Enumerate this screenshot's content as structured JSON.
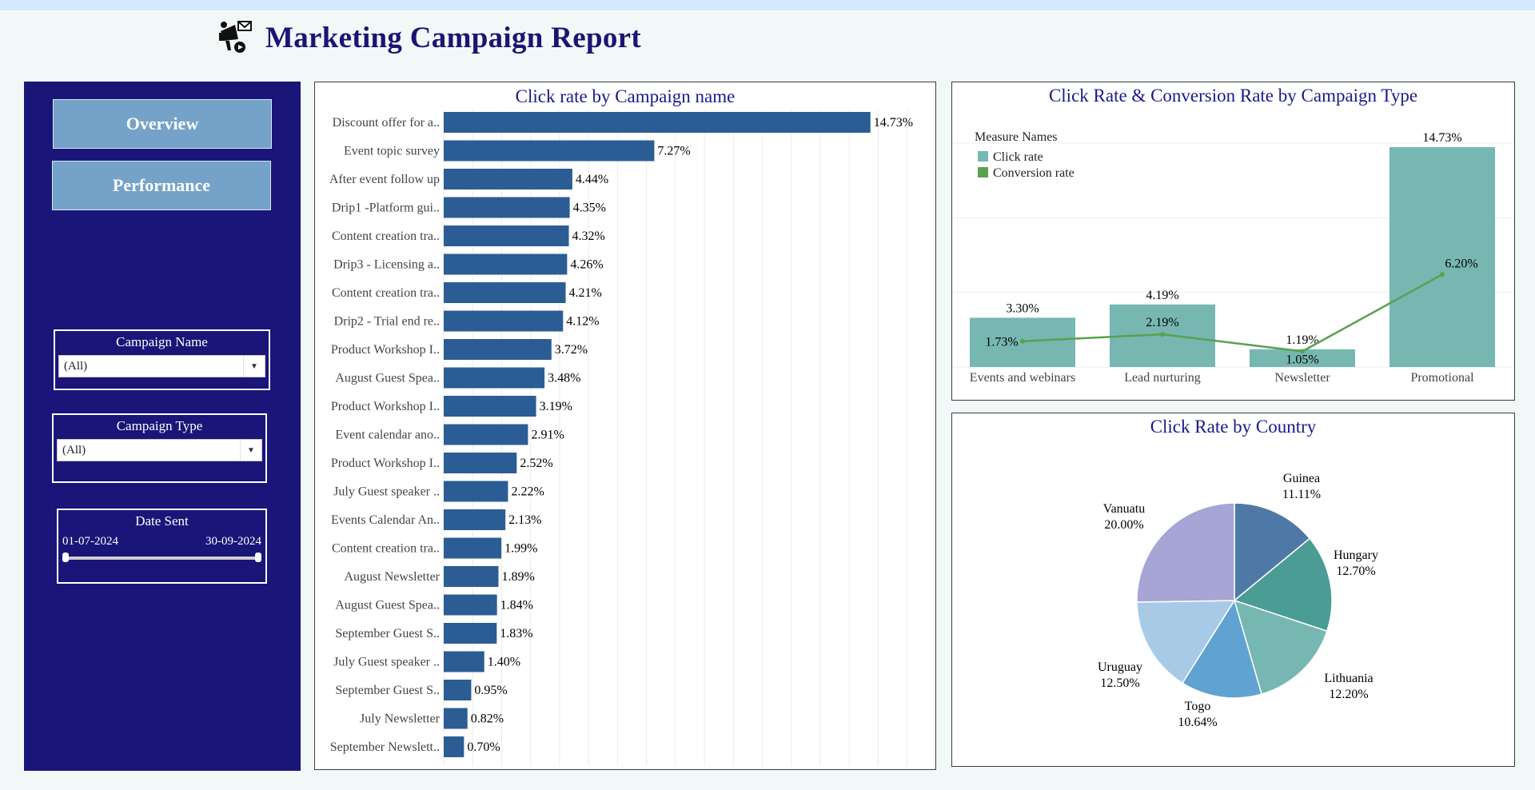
{
  "header": {
    "title": "Marketing Campaign Report"
  },
  "sidebar": {
    "nav": [
      {
        "label": "Overview"
      },
      {
        "label": "Performance"
      }
    ],
    "filters": {
      "campaign_name": {
        "label": "Campaign Name",
        "value": "(All)"
      },
      "campaign_type": {
        "label": "Campaign Type",
        "value": "(All)"
      },
      "date_sent": {
        "label": "Date Sent",
        "start": "01-07-2024",
        "end": "30-09-2024"
      }
    }
  },
  "colors": {
    "sidebar": "#1a1578",
    "nav_button": "#75a2c8",
    "bar": "#2b5d94",
    "click_rate": "#76b7b2",
    "conversion_rate": "#59a14f",
    "title": "#1a1a8a"
  },
  "chart_data": [
    {
      "type": "bar",
      "title": "Click rate by Campaign name",
      "orientation": "horizontal",
      "categories": [
        "Discount offer for a..",
        "Event topic survey",
        "After event follow up",
        "Drip1 -Platform gui..",
        "Content creation tra..",
        "Drip3 - Licensing a..",
        "Content creation tra..",
        "Drip2 - Trial end re..",
        "Product Workshop I..",
        "August Guest Spea..",
        "Product Workshop I..",
        "Event calendar ano..",
        "Product Workshop I..",
        "July Guest speaker ..",
        "Events Calendar An..",
        "Content creation tra..",
        "August Newsletter",
        "August Guest Spea..",
        "September Guest S..",
        "July Guest speaker ..",
        "September Guest S..",
        "July Newsletter",
        "September Newslett.."
      ],
      "values": [
        14.73,
        7.27,
        4.44,
        4.35,
        4.32,
        4.26,
        4.21,
        4.12,
        3.72,
        3.48,
        3.19,
        2.91,
        2.52,
        2.22,
        2.13,
        1.99,
        1.89,
        1.84,
        1.83,
        1.4,
        0.95,
        0.82,
        0.7
      ],
      "labels": [
        "14.73%",
        "7.27%",
        "4.44%",
        "4.35%",
        "4.32%",
        "4.26%",
        "4.21%",
        "4.12%",
        "3.72%",
        "3.48%",
        "3.19%",
        "2.91%",
        "2.52%",
        "2.22%",
        "2.13%",
        "1.99%",
        "1.89%",
        "1.84%",
        "1.83%",
        "1.40%",
        "0.95%",
        "0.82%",
        "0.70%"
      ],
      "xlim": [
        0,
        17
      ],
      "grid": true
    },
    {
      "type": "bar",
      "title": "Click Rate & Conversion Rate by Campaign Type",
      "legend_title": "Measure Names",
      "legend_position": "top-left",
      "categories": [
        "Events and webinars",
        "Lead nurturing",
        "Newsletter",
        "Promotional"
      ],
      "series": [
        {
          "name": "Click rate",
          "type": "bar",
          "values": [
            3.3,
            4.19,
            1.19,
            14.73
          ],
          "labels": [
            "3.30%",
            "4.19%",
            "1.19%",
            "14.73%"
          ]
        },
        {
          "name": "Conversion rate",
          "type": "line",
          "values": [
            1.73,
            2.19,
            1.05,
            6.2
          ],
          "labels": [
            "1.73%",
            "2.19%",
            "1.05%",
            "6.20%"
          ]
        }
      ],
      "ylim": [
        0,
        15
      ],
      "grid": true
    },
    {
      "type": "pie",
      "title": "Click Rate by Country",
      "slices": [
        {
          "label": "Guinea",
          "value": 11.11,
          "pct": "11.11%"
        },
        {
          "label": "Hungary",
          "value": 12.7,
          "pct": "12.70%"
        },
        {
          "label": "Lithuania",
          "value": 12.2,
          "pct": "12.20%"
        },
        {
          "label": "Togo",
          "value": 10.64,
          "pct": "10.64%"
        },
        {
          "label": "Uruguay",
          "value": 12.5,
          "pct": "12.50%"
        },
        {
          "label": "Vanuatu",
          "value": 20.0,
          "pct": "20.00%"
        }
      ]
    }
  ]
}
